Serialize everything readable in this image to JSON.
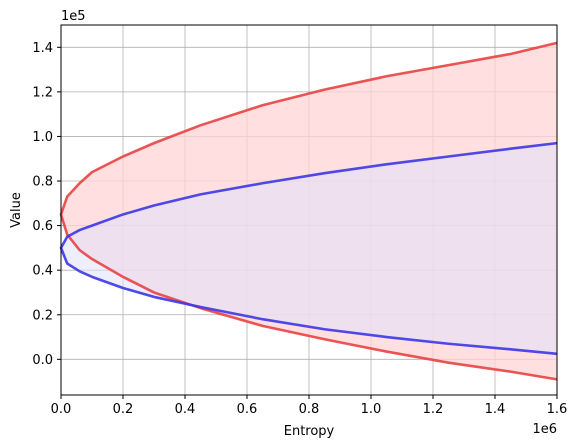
{
  "chart_data": {
    "type": "area",
    "xlabel": "Entropy",
    "ylabel": "Value",
    "x_multiplier_label": "1e5_placeholder",
    "xlim": [
      0,
      1600000
    ],
    "ylim": [
      -16000,
      150000
    ],
    "x_ticks": [
      0,
      200000,
      400000,
      600000,
      800000,
      1000000,
      1200000,
      1400000,
      1600000
    ],
    "x_tick_labels": [
      "0.0",
      "0.2",
      "0.4",
      "0.6",
      "0.8",
      "1.0",
      "1.2",
      "1.4",
      "1.6"
    ],
    "y_ticks": [
      0,
      20000,
      40000,
      60000,
      80000,
      100000,
      120000,
      140000
    ],
    "y_tick_labels": [
      "0.0",
      "0.2",
      "0.4",
      "0.6",
      "0.8",
      "1.0",
      "1.2",
      "1.4"
    ],
    "x_offset_text": "1e6",
    "y_offset_text": "1e5",
    "grid": true,
    "series": [
      {
        "color": "#e84343",
        "fill": "#ffd4d6",
        "upper": [
          [
            0,
            65000
          ],
          [
            20000,
            73000
          ],
          [
            60000,
            79000
          ],
          [
            100000,
            84000
          ],
          [
            200000,
            91000
          ],
          [
            300000,
            97000
          ],
          [
            450000,
            105000
          ],
          [
            650000,
            114000
          ],
          [
            850000,
            121000
          ],
          [
            1050000,
            127000
          ],
          [
            1250000,
            132000
          ],
          [
            1450000,
            137000
          ],
          [
            1600000,
            142000
          ]
        ],
        "lower": [
          [
            0,
            65000
          ],
          [
            20000,
            56000
          ],
          [
            60000,
            49000
          ],
          [
            100000,
            45000
          ],
          [
            200000,
            37000
          ],
          [
            300000,
            30000
          ],
          [
            450000,
            23000
          ],
          [
            650000,
            15000
          ],
          [
            850000,
            9000
          ],
          [
            1050000,
            3500
          ],
          [
            1250000,
            -1500
          ],
          [
            1450000,
            -5500
          ],
          [
            1600000,
            -9000
          ]
        ]
      },
      {
        "color": "#3b37e6",
        "fill": "#e2e0fb",
        "upper": [
          [
            0,
            50000
          ],
          [
            20000,
            55000
          ],
          [
            60000,
            58000
          ],
          [
            100000,
            60000
          ],
          [
            200000,
            65000
          ],
          [
            300000,
            69000
          ],
          [
            450000,
            74000
          ],
          [
            650000,
            79000
          ],
          [
            850000,
            83500
          ],
          [
            1050000,
            87500
          ],
          [
            1250000,
            91000
          ],
          [
            1450000,
            94500
          ],
          [
            1600000,
            97000
          ]
        ],
        "lower": [
          [
            0,
            50000
          ],
          [
            20000,
            43000
          ],
          [
            60000,
            39500
          ],
          [
            100000,
            37000
          ],
          [
            200000,
            32000
          ],
          [
            300000,
            28000
          ],
          [
            450000,
            23500
          ],
          [
            650000,
            18000
          ],
          [
            850000,
            13500
          ],
          [
            1050000,
            10000
          ],
          [
            1250000,
            7000
          ],
          [
            1450000,
            4500
          ],
          [
            1600000,
            2500
          ]
        ]
      }
    ]
  }
}
